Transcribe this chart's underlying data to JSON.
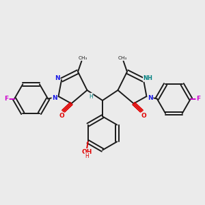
{
  "bg_color": "#ebebeb",
  "bond_color": "#1a1a1a",
  "n_color": "#1a1ae6",
  "o_color": "#e00000",
  "f_color": "#cc00cc",
  "h_color": "#008080",
  "figsize": [
    3.0,
    3.0
  ],
  "dpi": 100,
  "lw": 1.4,
  "xlim": [
    0,
    1
  ],
  "ylim": [
    0,
    1
  ]
}
